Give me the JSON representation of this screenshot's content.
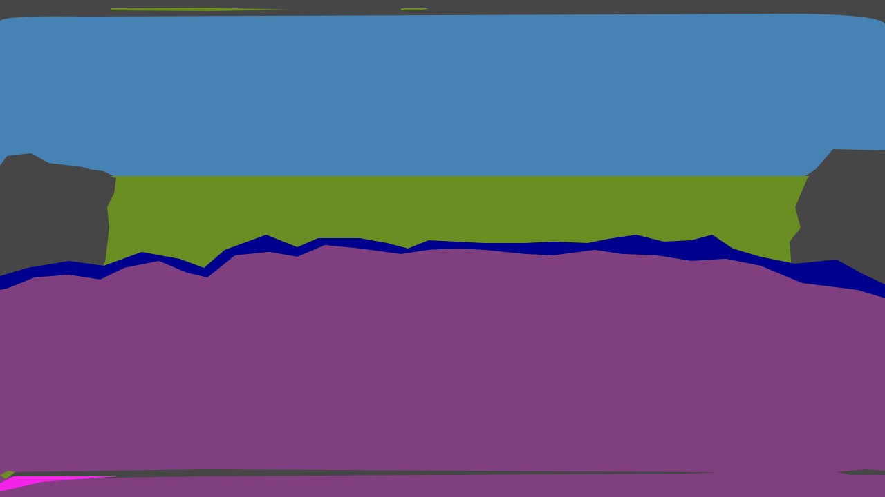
{
  "scene": {
    "kind": "semantic-segmentation-map",
    "regions": [
      {
        "name": "sky",
        "color": "#4682b4"
      },
      {
        "name": "vegetation",
        "color": "#6b8e23"
      },
      {
        "name": "building-left",
        "color": "#464646"
      },
      {
        "name": "building-right",
        "color": "#464646"
      },
      {
        "name": "vehicle-band",
        "color": "#00008e"
      },
      {
        "name": "road",
        "color": "#804080"
      },
      {
        "name": "sidewalk",
        "color": "#f423e8"
      },
      {
        "name": "top-border",
        "color": "#464646"
      },
      {
        "name": "bottom-pole",
        "color": "#464646"
      }
    ]
  }
}
